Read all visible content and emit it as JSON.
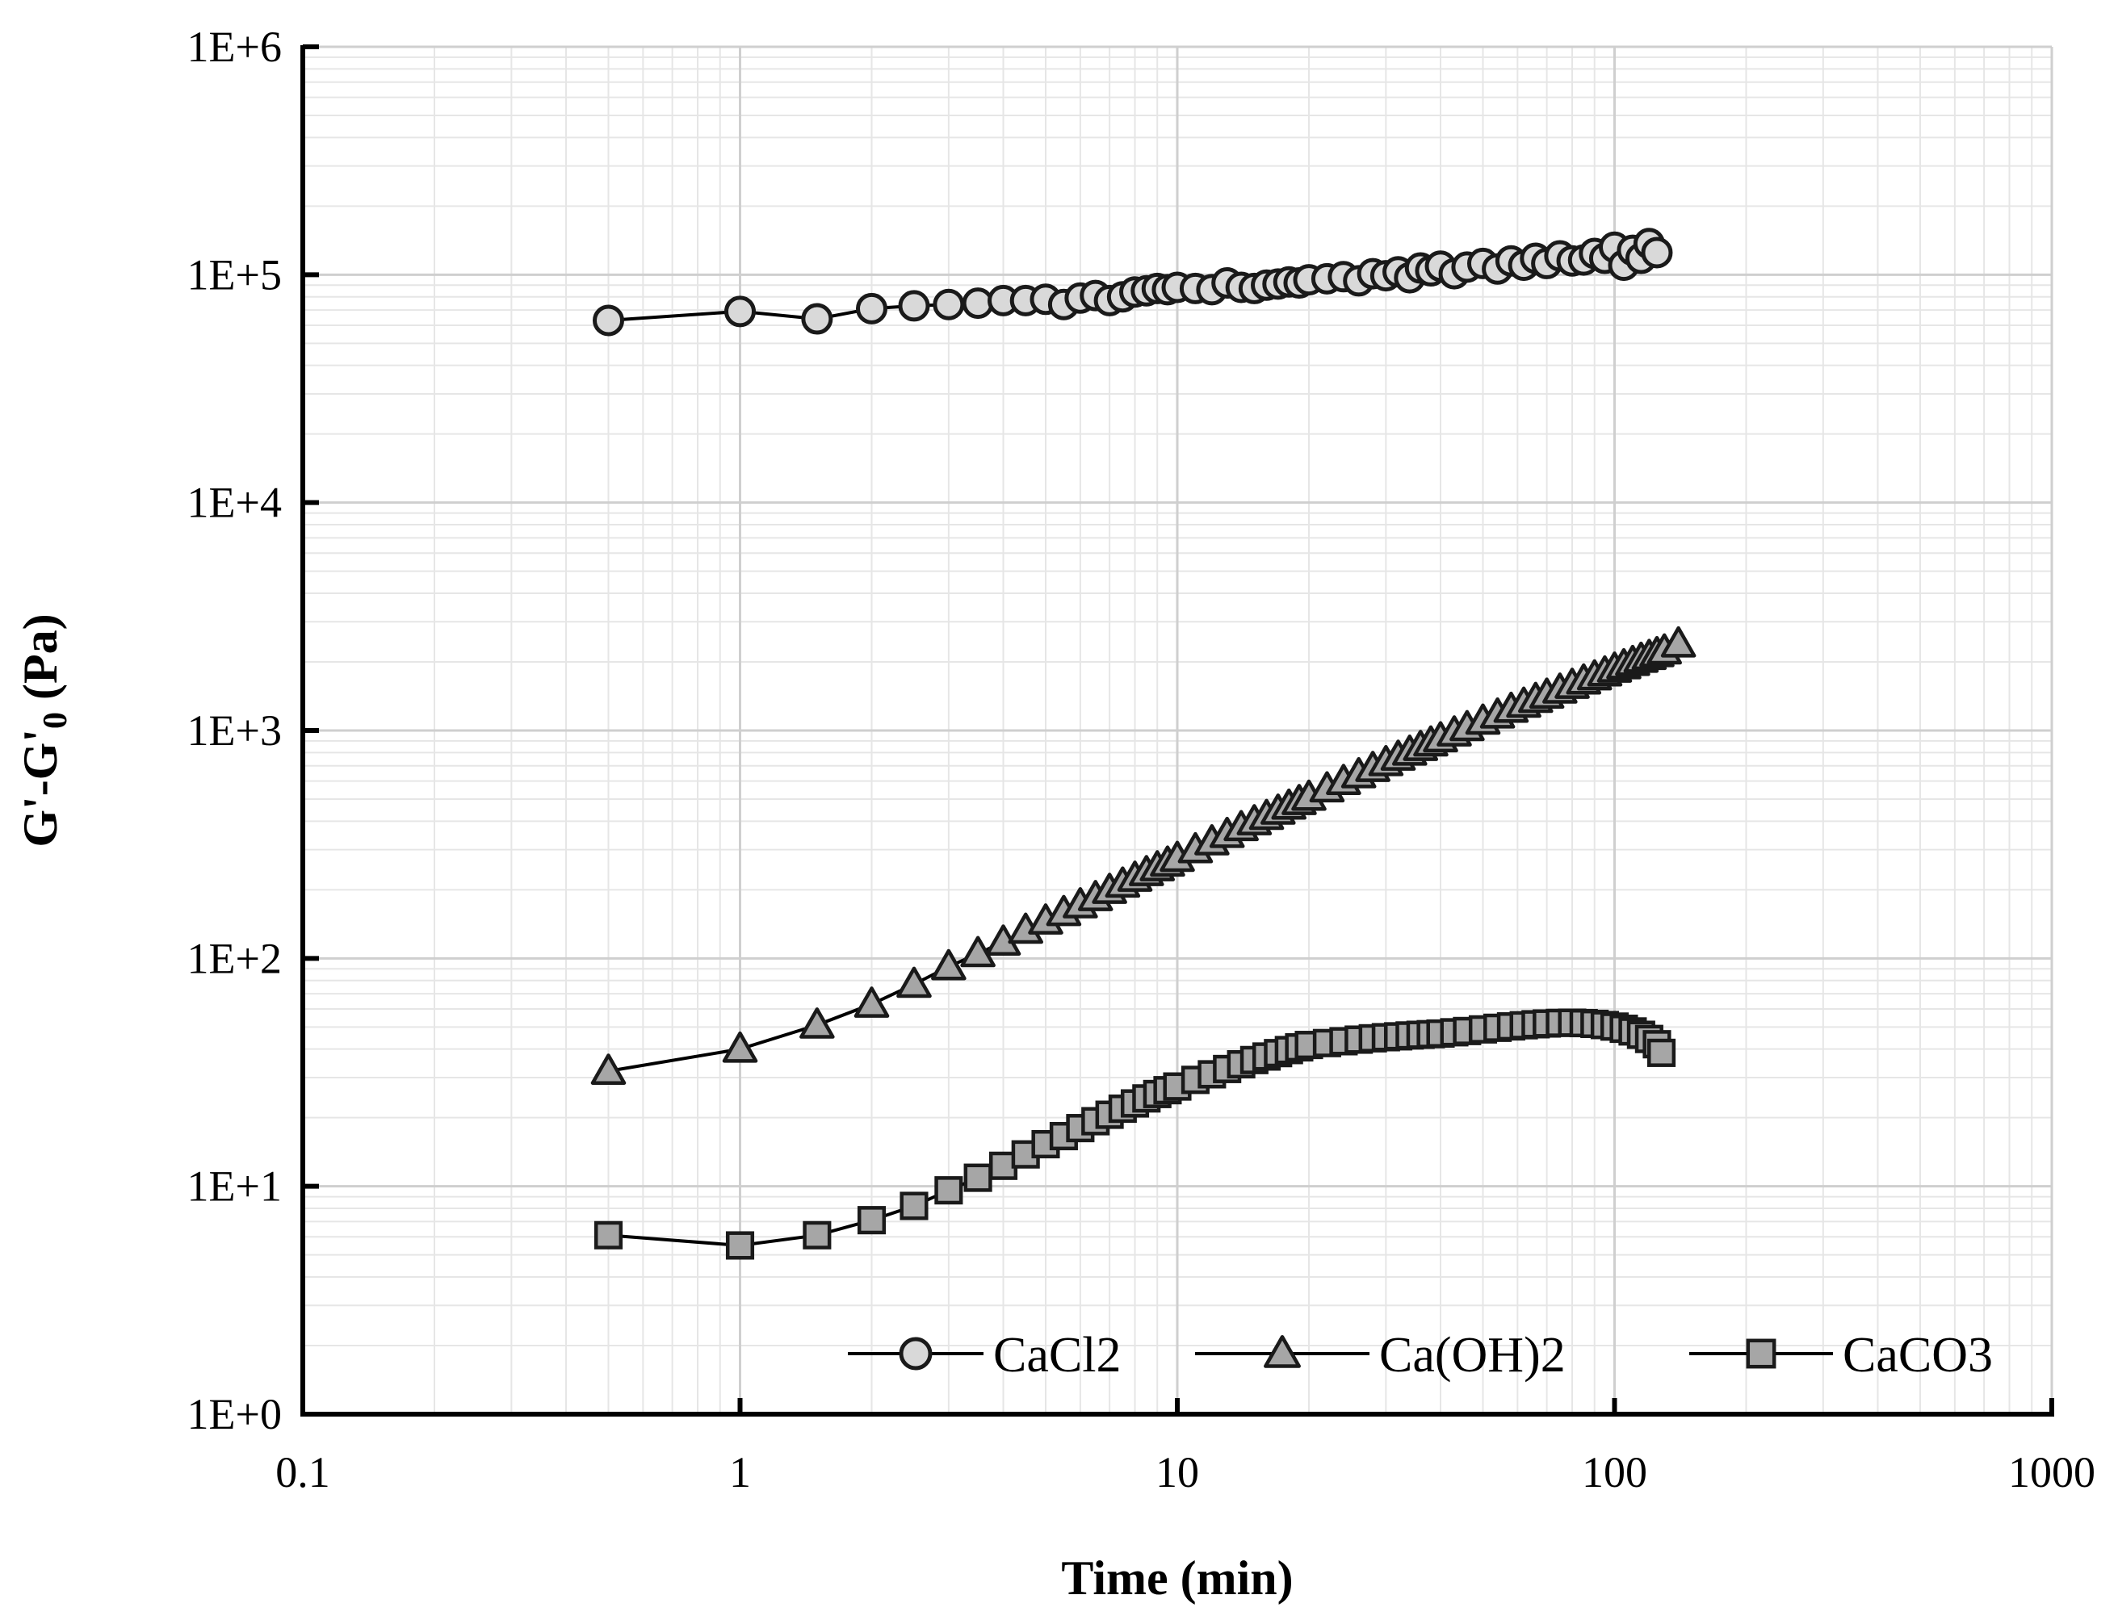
{
  "chart_data": {
    "type": "scatter",
    "title": "",
    "xlabel": "Time (min)",
    "ylabel_parts": [
      "G'-G'",
      "0",
      " (Pa)"
    ],
    "x_scale": "log",
    "y_scale": "log",
    "xlim": [
      0.1,
      1000
    ],
    "ylim": [
      1,
      1000000
    ],
    "x_ticks": [
      0.1,
      1,
      10,
      100,
      1000
    ],
    "x_tick_labels": [
      "0.1",
      "1",
      "10",
      "100",
      "1000"
    ],
    "y_ticks": [
      1,
      10,
      100,
      1000,
      10000,
      100000,
      1000000
    ],
    "y_tick_labels": [
      "1E+0",
      "1E+1",
      "1E+2",
      "1E+3",
      "1E+4",
      "1E+5",
      "1E+6"
    ],
    "grid": true,
    "legend_position": "bottom-right",
    "series": [
      {
        "name": "CaCl2",
        "marker": "circle",
        "x": [
          0.5,
          1,
          1.5,
          2,
          2.5,
          3,
          3.5,
          4,
          4.5,
          5,
          5.5,
          6,
          6.5,
          7,
          7.5,
          8,
          8.5,
          9,
          9.5,
          10,
          11,
          12,
          13,
          14,
          15,
          16,
          17,
          18,
          19,
          20,
          22,
          24,
          26,
          28,
          30,
          32,
          34,
          36,
          38,
          40,
          43,
          46,
          50,
          54,
          58,
          62,
          66,
          70,
          75,
          80,
          85,
          90,
          95,
          100,
          105,
          110,
          115,
          120,
          125
        ],
        "y": [
          63000,
          69000,
          64000,
          71000,
          73000,
          74000,
          75000,
          77000,
          77000,
          78000,
          74000,
          79000,
          81000,
          77000,
          80000,
          84000,
          85000,
          87000,
          86000,
          88000,
          87000,
          86000,
          92000,
          88000,
          87000,
          90000,
          91000,
          93000,
          92000,
          95000,
          96000,
          98000,
          94000,
          101000,
          99000,
          103000,
          97000,
          107000,
          104000,
          109000,
          101000,
          108000,
          112000,
          106000,
          115000,
          110000,
          118000,
          112000,
          121000,
          115000,
          116000,
          124000,
          118000,
          132000,
          110000,
          128000,
          118000,
          137000,
          125000
        ]
      },
      {
        "name": "Ca(OH)2",
        "marker": "triangle",
        "x": [
          0.5,
          1,
          1.5,
          2,
          2.5,
          3,
          3.5,
          4,
          4.5,
          5,
          5.5,
          6,
          6.5,
          7,
          7.5,
          8,
          8.5,
          9,
          9.5,
          10,
          11,
          12,
          13,
          14,
          15,
          16,
          17,
          18,
          19,
          20,
          22,
          24,
          26,
          28,
          30,
          32,
          34,
          36,
          38,
          40,
          43,
          46,
          50,
          54,
          58,
          62,
          66,
          70,
          75,
          80,
          85,
          90,
          95,
          100,
          105,
          110,
          115,
          120,
          125,
          130,
          140
        ],
        "y": [
          32,
          40,
          51,
          63,
          77,
          92,
          105,
          118,
          133,
          146,
          159,
          172,
          185,
          199,
          212,
          225,
          238,
          250,
          262,
          275,
          300,
          325,
          350,
          375,
          398,
          420,
          443,
          466,
          488,
          510,
          555,
          598,
          640,
          682,
          723,
          764,
          804,
          843,
          882,
          920,
          976,
          1030,
          1100,
          1170,
          1240,
          1305,
          1370,
          1430,
          1505,
          1580,
          1650,
          1720,
          1790,
          1860,
          1925,
          1990,
          2055,
          2115,
          2175,
          2235,
          2400
        ]
      },
      {
        "name": "CaCO3",
        "marker": "square",
        "x": [
          0.5,
          1,
          1.5,
          2,
          2.5,
          3,
          3.5,
          4,
          4.5,
          5,
          5.5,
          6,
          6.5,
          7,
          7.5,
          8,
          8.5,
          9,
          9.5,
          10,
          11,
          12,
          13,
          14,
          15,
          16,
          17,
          18,
          19,
          20,
          22,
          24,
          26,
          28,
          30,
          32,
          34,
          36,
          38,
          40,
          43,
          46,
          50,
          54,
          58,
          62,
          66,
          70,
          75,
          80,
          85,
          90,
          95,
          100,
          105,
          110,
          115,
          120,
          125,
          128
        ],
        "y": [
          6.1,
          5.5,
          6.1,
          7.1,
          8.2,
          9.6,
          10.9,
          12.3,
          13.8,
          15.3,
          16.6,
          18.0,
          19.3,
          20.6,
          21.9,
          23.1,
          24.3,
          25.4,
          26.4,
          27.4,
          29.3,
          31.0,
          32.7,
          34.3,
          35.8,
          37.1,
          38.4,
          39.6,
          40.7,
          41.7,
          42.5,
          43.3,
          44.0,
          44.6,
          45.1,
          45.5,
          45.9,
          46.2,
          46.5,
          46.8,
          47.4,
          48.0,
          48.8,
          49.6,
          50.3,
          50.9,
          51.4,
          51.8,
          52.1,
          52.2,
          52.0,
          51.6,
          51.0,
          50.2,
          49.1,
          47.8,
          46.2,
          44.3,
          42.0,
          38.5
        ]
      }
    ]
  }
}
